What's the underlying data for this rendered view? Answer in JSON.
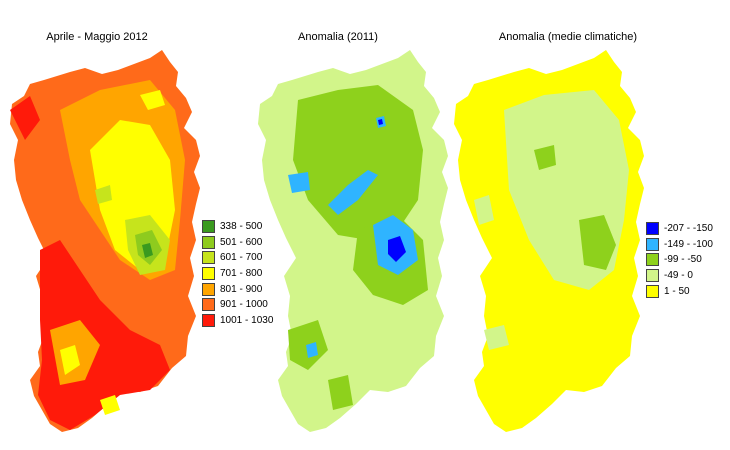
{
  "panels": [
    {
      "title": "Aprile - Maggio 2012",
      "legend": [
        {
          "label": "338 - 500",
          "color": "#3a9a1f"
        },
        {
          "label": "501 - 600",
          "color": "#8ecb1e"
        },
        {
          "label": "601 - 700",
          "color": "#c6e41c"
        },
        {
          "label": "701 - 800",
          "color": "#ffff00"
        },
        {
          "label": "801 - 900",
          "color": "#ffa500"
        },
        {
          "label": "901 - 1000",
          "color": "#ff6a1a"
        },
        {
          "label": "1001 - 1030",
          "color": "#ff1a0a"
        }
      ]
    },
    {
      "title": "Anomalia (2011)",
      "legend": []
    },
    {
      "title": "Anomalia (medie climatiche)",
      "legend": [
        {
          "label": "-207 - -150",
          "color": "#0000ff"
        },
        {
          "label": "-149 - -100",
          "color": "#2fb4ff"
        },
        {
          "label": "-99 - -50",
          "color": "#8ed11c"
        },
        {
          "label": "-49 - 0",
          "color": "#d2f58a"
        },
        {
          "label": "1 - 50",
          "color": "#ffff00"
        }
      ]
    }
  ]
}
